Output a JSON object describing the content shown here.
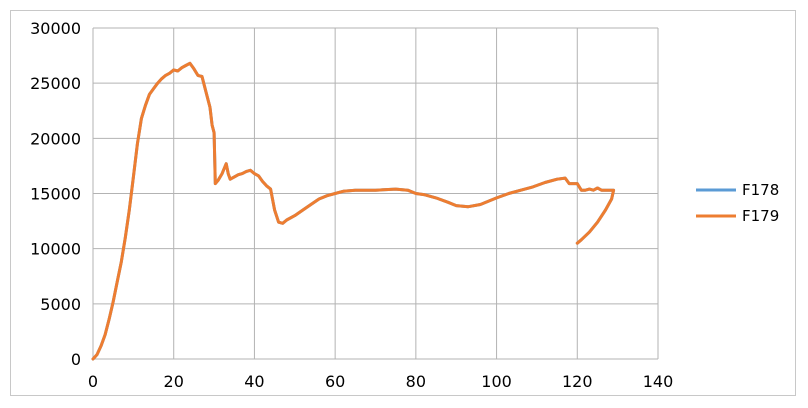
{
  "chart_data": {
    "type": "line",
    "title": "",
    "xlabel": "",
    "ylabel": "",
    "xlim": [
      0,
      140
    ],
    "ylim": [
      0,
      30000
    ],
    "x_ticks": [
      "0",
      "20",
      "40",
      "60",
      "80",
      "100",
      "120",
      "140"
    ],
    "y_ticks": [
      "0",
      "5000",
      "10000",
      "15000",
      "20000",
      "25000",
      "30000"
    ],
    "grid": true,
    "legend_position": "right",
    "series": [
      {
        "name": "F178",
        "color": "#5b9bd5",
        "points": [
          [
            0,
            0
          ],
          [
            1,
            400
          ],
          [
            2,
            1200
          ],
          [
            3,
            2200
          ],
          [
            4,
            3600
          ],
          [
            5,
            5200
          ],
          [
            6,
            7000
          ],
          [
            7,
            8800
          ],
          [
            8,
            11000
          ],
          [
            9,
            13500
          ],
          [
            10,
            16500
          ],
          [
            11,
            19500
          ],
          [
            12,
            21800
          ],
          [
            13,
            23000
          ],
          [
            14,
            24000
          ],
          [
            15,
            24500
          ],
          [
            16,
            25000
          ],
          [
            17,
            25400
          ],
          [
            18,
            25700
          ],
          [
            19,
            25900
          ],
          [
            20,
            26200
          ],
          [
            21,
            26100
          ],
          [
            22,
            26400
          ],
          [
            23,
            26600
          ],
          [
            24,
            26800
          ],
          [
            25,
            26300
          ],
          [
            26,
            25700
          ],
          [
            27,
            25600
          ],
          [
            28,
            24200
          ],
          [
            29,
            22800
          ],
          [
            29.5,
            21200
          ],
          [
            30,
            20500
          ],
          [
            30.3,
            15900
          ],
          [
            31,
            16200
          ],
          [
            32,
            16800
          ],
          [
            33,
            17700
          ],
          [
            33.5,
            16800
          ],
          [
            34,
            16300
          ],
          [
            35,
            16500
          ],
          [
            36,
            16700
          ],
          [
            37,
            16800
          ],
          [
            38,
            17000
          ],
          [
            39,
            17100
          ],
          [
            40,
            16800
          ],
          [
            41,
            16600
          ],
          [
            42,
            16100
          ],
          [
            43,
            15700
          ],
          [
            44,
            15400
          ],
          [
            45,
            13500
          ],
          [
            46,
            12400
          ],
          [
            47,
            12300
          ],
          [
            48,
            12600
          ],
          [
            50,
            13000
          ],
          [
            52,
            13500
          ],
          [
            54,
            14000
          ],
          [
            56,
            14500
          ],
          [
            58,
            14800
          ],
          [
            60,
            15000
          ],
          [
            62,
            15200
          ],
          [
            65,
            15300
          ],
          [
            70,
            15300
          ],
          [
            75,
            15400
          ],
          [
            78,
            15300
          ],
          [
            80,
            15000
          ],
          [
            82,
            14900
          ],
          [
            85,
            14600
          ],
          [
            88,
            14200
          ],
          [
            90,
            13900
          ],
          [
            93,
            13800
          ],
          [
            96,
            14000
          ],
          [
            100,
            14600
          ],
          [
            103,
            15000
          ],
          [
            106,
            15300
          ],
          [
            109,
            15600
          ],
          [
            112,
            16000
          ],
          [
            115,
            16300
          ],
          [
            117,
            16400
          ],
          [
            118,
            15900
          ],
          [
            120,
            15900
          ],
          [
            121,
            15300
          ],
          [
            122,
            15300
          ],
          [
            123,
            15400
          ],
          [
            124,
            15300
          ],
          [
            125,
            15500
          ],
          [
            126,
            15300
          ],
          [
            127,
            15300
          ],
          [
            128,
            15300
          ],
          [
            129,
            15300
          ],
          [
            128.5,
            14500
          ],
          [
            127,
            13500
          ],
          [
            125,
            12400
          ],
          [
            123,
            11500
          ],
          [
            121,
            10800
          ],
          [
            120,
            10500
          ]
        ]
      },
      {
        "name": "F179",
        "color": "#ed7d31",
        "points": [
          [
            0,
            0
          ],
          [
            1,
            400
          ],
          [
            2,
            1200
          ],
          [
            3,
            2200
          ],
          [
            4,
            3600
          ],
          [
            5,
            5200
          ],
          [
            6,
            7000
          ],
          [
            7,
            8800
          ],
          [
            8,
            11000
          ],
          [
            9,
            13500
          ],
          [
            10,
            16500
          ],
          [
            11,
            19500
          ],
          [
            12,
            21800
          ],
          [
            13,
            23000
          ],
          [
            14,
            24000
          ],
          [
            15,
            24500
          ],
          [
            16,
            25000
          ],
          [
            17,
            25400
          ],
          [
            18,
            25700
          ],
          [
            19,
            25900
          ],
          [
            20,
            26200
          ],
          [
            21,
            26100
          ],
          [
            22,
            26400
          ],
          [
            23,
            26600
          ],
          [
            24,
            26800
          ],
          [
            25,
            26300
          ],
          [
            26,
            25700
          ],
          [
            27,
            25600
          ],
          [
            28,
            24200
          ],
          [
            29,
            22800
          ],
          [
            29.5,
            21200
          ],
          [
            30,
            20500
          ],
          [
            30.3,
            15900
          ],
          [
            31,
            16200
          ],
          [
            32,
            16800
          ],
          [
            33,
            17700
          ],
          [
            33.5,
            16800
          ],
          [
            34,
            16300
          ],
          [
            35,
            16500
          ],
          [
            36,
            16700
          ],
          [
            37,
            16800
          ],
          [
            38,
            17000
          ],
          [
            39,
            17100
          ],
          [
            40,
            16800
          ],
          [
            41,
            16600
          ],
          [
            42,
            16100
          ],
          [
            43,
            15700
          ],
          [
            44,
            15400
          ],
          [
            45,
            13500
          ],
          [
            46,
            12400
          ],
          [
            47,
            12300
          ],
          [
            48,
            12600
          ],
          [
            50,
            13000
          ],
          [
            52,
            13500
          ],
          [
            54,
            14000
          ],
          [
            56,
            14500
          ],
          [
            58,
            14800
          ],
          [
            60,
            15000
          ],
          [
            62,
            15200
          ],
          [
            65,
            15300
          ],
          [
            70,
            15300
          ],
          [
            75,
            15400
          ],
          [
            78,
            15300
          ],
          [
            80,
            15000
          ],
          [
            82,
            14900
          ],
          [
            85,
            14600
          ],
          [
            88,
            14200
          ],
          [
            90,
            13900
          ],
          [
            93,
            13800
          ],
          [
            96,
            14000
          ],
          [
            100,
            14600
          ],
          [
            103,
            15000
          ],
          [
            106,
            15300
          ],
          [
            109,
            15600
          ],
          [
            112,
            16000
          ],
          [
            115,
            16300
          ],
          [
            117,
            16400
          ],
          [
            118,
            15900
          ],
          [
            120,
            15900
          ],
          [
            121,
            15300
          ],
          [
            122,
            15300
          ],
          [
            123,
            15400
          ],
          [
            124,
            15300
          ],
          [
            125,
            15500
          ],
          [
            126,
            15300
          ],
          [
            127,
            15300
          ],
          [
            128,
            15300
          ],
          [
            129,
            15300
          ],
          [
            128.5,
            14500
          ],
          [
            127,
            13500
          ],
          [
            125,
            12400
          ],
          [
            123,
            11500
          ],
          [
            121,
            10800
          ],
          [
            120,
            10500
          ]
        ]
      }
    ]
  }
}
